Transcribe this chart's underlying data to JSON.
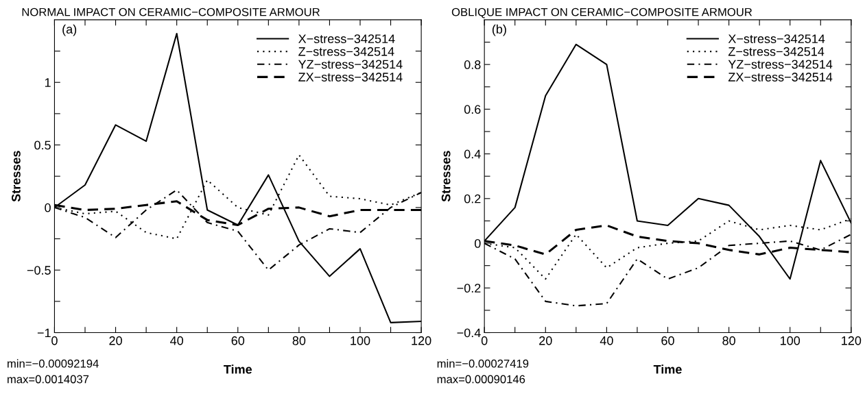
{
  "chart_data": [
    {
      "type": "line",
      "title": "NORMAL IMPACT ON CERAMIC−COMPOSITE ARMOUR",
      "xlabel": "Time",
      "ylabel": "Stresses",
      "annotations": [
        "(a)",
        "min=−0.00092194",
        "max=0.0014037"
      ],
      "x": [
        0,
        10,
        20,
        30,
        40,
        50,
        60,
        70,
        80,
        90,
        100,
        110,
        120
      ],
      "series": [
        {
          "name": "X−stress−342514",
          "color": "#000000",
          "line_style": "solid",
          "values": [
            0,
            0.18,
            0.66,
            0.53,
            1.39,
            -0.02,
            -0.14,
            0.26,
            -0.27,
            -0.55,
            -0.33,
            -0.92,
            -0.91
          ]
        },
        {
          "name": "Z−stress−342514",
          "color": "#000000",
          "line_style": "dotted",
          "values": [
            0,
            -0.05,
            -0.03,
            -0.2,
            -0.25,
            0.22,
            0.0,
            -0.06,
            0.42,
            0.09,
            0.07,
            0.02,
            0.12
          ]
        },
        {
          "name": "YZ−stress−342514",
          "color": "#000000",
          "line_style": "dashdot",
          "values": [
            0,
            -0.08,
            -0.24,
            -0.02,
            0.14,
            -0.12,
            -0.19,
            -0.5,
            -0.3,
            -0.17,
            -0.2,
            0,
            0.12
          ]
        },
        {
          "name": "ZX−stress−342514",
          "color": "#000000",
          "line_style": "dashed",
          "values": [
            0.02,
            -0.02,
            -0.01,
            0.02,
            0.05,
            -0.1,
            -0.14,
            -0.01,
            0,
            -0.07,
            -0.02,
            -0.02,
            -0.02
          ]
        }
      ],
      "xlim": [
        0,
        120
      ],
      "ylim": [
        -1,
        1.5
      ],
      "xticks": [
        0,
        {
          "value": 10,
          "label": null
        },
        20,
        {
          "value": 30,
          "label": null
        },
        40,
        {
          "value": 50,
          "label": null
        },
        60,
        {
          "value": 70,
          "label": null
        },
        80,
        {
          "value": 90,
          "label": null
        },
        100,
        {
          "value": 110,
          "label": null
        },
        120
      ],
      "yticks": [
        {
          "value": -1,
          "label": "−1"
        },
        {
          "value": -0.75,
          "label": null
        },
        {
          "value": -0.5,
          "label": "−0.5"
        },
        {
          "value": -0.25,
          "label": null
        },
        0,
        {
          "value": 0.25,
          "label": null
        },
        0.5,
        {
          "value": 0.75,
          "label": null
        },
        1,
        {
          "value": 1.25,
          "label": null
        }
      ],
      "legend": "top right",
      "grid": false
    },
    {
      "type": "line",
      "title": "OBLIQUE IMPACT ON CERAMIC−COMPOSITE ARMOUR",
      "xlabel": "Time",
      "ylabel": "Stresses",
      "annotations": [
        "(b)",
        "min=−0.00027419",
        "max=0.00090146"
      ],
      "x": [
        0,
        10,
        20,
        30,
        40,
        50,
        60,
        70,
        80,
        90,
        100,
        110,
        120
      ],
      "series": [
        {
          "name": "X−stress−342514",
          "color": "#000000",
          "line_style": "solid",
          "values": [
            0.01,
            0.16,
            0.66,
            0.89,
            0.8,
            0.1,
            0.08,
            0.2,
            0.17,
            0.03,
            -0.16,
            0.37,
            0.09
          ]
        },
        {
          "name": "Z−stress−342514",
          "color": "#000000",
          "line_style": "dotted",
          "values": [
            0,
            -0.02,
            -0.16,
            0.04,
            -0.11,
            -0.02,
            0.0,
            0.01,
            0.1,
            0.06,
            0.08,
            0.06,
            0.11
          ]
        },
        {
          "name": "YZ−stress−342514",
          "color": "#000000",
          "line_style": "dashdot",
          "values": [
            0,
            -0.07,
            -0.26,
            -0.28,
            -0.27,
            -0.07,
            -0.16,
            -0.11,
            -0.01,
            0,
            0.01,
            -0.03,
            0.04
          ]
        },
        {
          "name": "ZX−stress−342514",
          "color": "#000000",
          "line_style": "dashed",
          "values": [
            0.01,
            -0.01,
            -0.05,
            0.06,
            0.08,
            0.03,
            0.01,
            0,
            -0.03,
            -0.05,
            -0.02,
            -0.03,
            -0.04
          ]
        }
      ],
      "xlim": [
        0,
        120
      ],
      "ylim": [
        -0.4,
        1.0
      ],
      "xticks": [
        0,
        {
          "value": 10,
          "label": null
        },
        20,
        {
          "value": 30,
          "label": null
        },
        40,
        {
          "value": 50,
          "label": null
        },
        60,
        {
          "value": 70,
          "label": null
        },
        80,
        {
          "value": 90,
          "label": null
        },
        100,
        {
          "value": 110,
          "label": null
        },
        120
      ],
      "yticks": [
        {
          "value": -0.4,
          "label": "−0.4"
        },
        {
          "value": -0.3,
          "label": null
        },
        {
          "value": -0.2,
          "label": "−0.2"
        },
        {
          "value": -0.1,
          "label": null
        },
        0,
        {
          "value": 0.1,
          "label": null
        },
        0.2,
        {
          "value": 0.3,
          "label": null
        },
        0.4,
        {
          "value": 0.5,
          "label": null
        },
        0.6,
        {
          "value": 0.7,
          "label": null
        },
        0.8,
        {
          "value": 0.9,
          "label": null
        }
      ],
      "legend": "top right",
      "grid": false
    }
  ]
}
